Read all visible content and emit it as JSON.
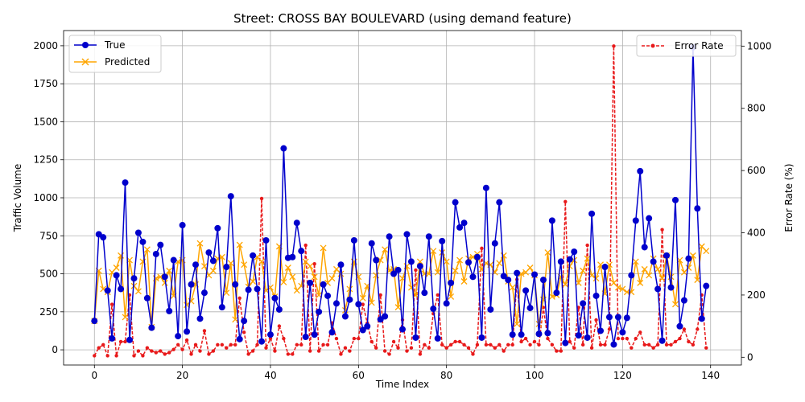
{
  "chart_data": {
    "type": "line",
    "title": "Street: CROSS BAY BOULEVARD (using demand feature)",
    "xlabel": "Time Index",
    "ylabel_left": "Traffic Volume",
    "ylabel_right": "Error Rate (%)",
    "xlim": [
      -7,
      147
    ],
    "ylim_left": [
      -100,
      2100
    ],
    "ylim_right": [
      -25,
      1050
    ],
    "x_ticks": [
      0,
      20,
      40,
      60,
      80,
      100,
      120,
      140
    ],
    "y_ticks_left": [
      0,
      250,
      500,
      750,
      1000,
      1250,
      1500,
      1750,
      2000
    ],
    "y_ticks_right": [
      0,
      200,
      400,
      600,
      800,
      1000
    ],
    "grid": true,
    "legend_left": {
      "placement": "upper-left",
      "entries": [
        "True",
        "Predicted"
      ]
    },
    "legend_right": {
      "placement": "upper-right",
      "entries": [
        "Error Rate"
      ]
    },
    "colors": {
      "true": "#0000cc",
      "predicted": "#ffa500",
      "error": "#e8191a"
    },
    "series": [
      {
        "name": "True",
        "axis": "left",
        "marker": "o",
        "values": [
          190,
          760,
          740,
          390,
          75,
          490,
          400,
          1100,
          65,
          470,
          770,
          710,
          340,
          145,
          630,
          690,
          480,
          255,
          590,
          90,
          820,
          120,
          430,
          560,
          205,
          375,
          640,
          585,
          800,
          280,
          545,
          1010,
          430,
          70,
          190,
          395,
          620,
          400,
          55,
          720,
          100,
          340,
          265,
          1325,
          605,
          610,
          835,
          650,
          85,
          440,
          100,
          250,
          430,
          355,
          115,
          305,
          560,
          220,
          330,
          720,
          300,
          130,
          155,
          700,
          590,
          200,
          220,
          745,
          500,
          525,
          135,
          760,
          580,
          80,
          550,
          375,
          745,
          270,
          75,
          715,
          305,
          440,
          970,
          805,
          835,
          575,
          480,
          610,
          80,
          1065,
          265,
          700,
          970,
          485,
          460,
          100,
          505,
          100,
          390,
          275,
          495,
          105,
          460,
          110,
          850,
          375,
          580,
          45,
          595,
          645,
          95,
          305,
          80,
          895,
          355,
          125,
          545,
          215,
          35,
          215,
          115,
          210,
          490,
          850,
          1175,
          675,
          865,
          580,
          400,
          60,
          620,
          410,
          985,
          155,
          325,
          600,
          1990,
          930,
          205,
          420
        ]
      },
      {
        "name": "Predicted",
        "axis": "left",
        "marker": "x",
        "values": [
          190,
          520,
          400,
          380,
          510,
          540,
          620,
          215,
          590,
          420,
          385,
          580,
          660,
          150,
          470,
          480,
          440,
          520,
          355,
          580,
          590,
          295,
          320,
          430,
          700,
          550,
          490,
          520,
          600,
          610,
          375,
          570,
          200,
          690,
          560,
          415,
          450,
          610,
          580,
          390,
          410,
          350,
          680,
          445,
          540,
          480,
          390,
          420,
          580,
          550,
          480,
          360,
          670,
          440,
          470,
          530,
          500,
          260,
          400,
          580,
          480,
          340,
          420,
          310,
          490,
          590,
          660,
          520,
          530,
          280,
          470,
          550,
          410,
          360,
          580,
          500,
          500,
          650,
          510,
          640,
          580,
          350,
          520,
          590,
          450,
          600,
          610,
          630,
          530,
          570,
          560,
          510,
          570,
          620,
          450,
          410,
          170,
          500,
          510,
          540,
          490,
          170,
          330,
          640,
          350,
          360,
          480,
          430,
          550,
          590,
          440,
          520,
          600,
          490,
          470,
          560,
          370,
          560,
          440,
          410,
          400,
          380,
          380,
          580,
          440,
          530,
          490,
          600,
          530,
          470,
          620,
          480,
          300,
          590,
          510,
          540,
          620,
          460,
          680,
          650
        ]
      },
      {
        "name": "Error Rate",
        "axis": "right",
        "marker": ".",
        "values": [
          5,
          30,
          40,
          5,
          170,
          5,
          50,
          50,
          200,
          5,
          20,
          5,
          30,
          20,
          15,
          20,
          10,
          15,
          25,
          40,
          25,
          55,
          10,
          40,
          20,
          85,
          10,
          20,
          40,
          40,
          30,
          40,
          40,
          190,
          80,
          10,
          20,
          40,
          510,
          30,
          60,
          20,
          100,
          60,
          10,
          10,
          40,
          40,
          360,
          20,
          300,
          20,
          40,
          40,
          110,
          60,
          10,
          30,
          20,
          60,
          60,
          170,
          110,
          50,
          30,
          200,
          20,
          10,
          50,
          30,
          120,
          20,
          30,
          280,
          10,
          40,
          30,
          140,
          200,
          40,
          30,
          40,
          50,
          50,
          40,
          30,
          10,
          40,
          350,
          40,
          40,
          30,
          40,
          20,
          40,
          40,
          250,
          50,
          60,
          40,
          50,
          40,
          160,
          60,
          40,
          20,
          20,
          500,
          50,
          30,
          160,
          40,
          360,
          30,
          120,
          40,
          40,
          90,
          1000,
          60,
          60,
          60,
          30,
          60,
          80,
          40,
          40,
          30,
          40,
          410,
          40,
          40,
          50,
          60,
          90,
          50,
          40,
          90,
          200,
          30
        ]
      }
    ]
  }
}
